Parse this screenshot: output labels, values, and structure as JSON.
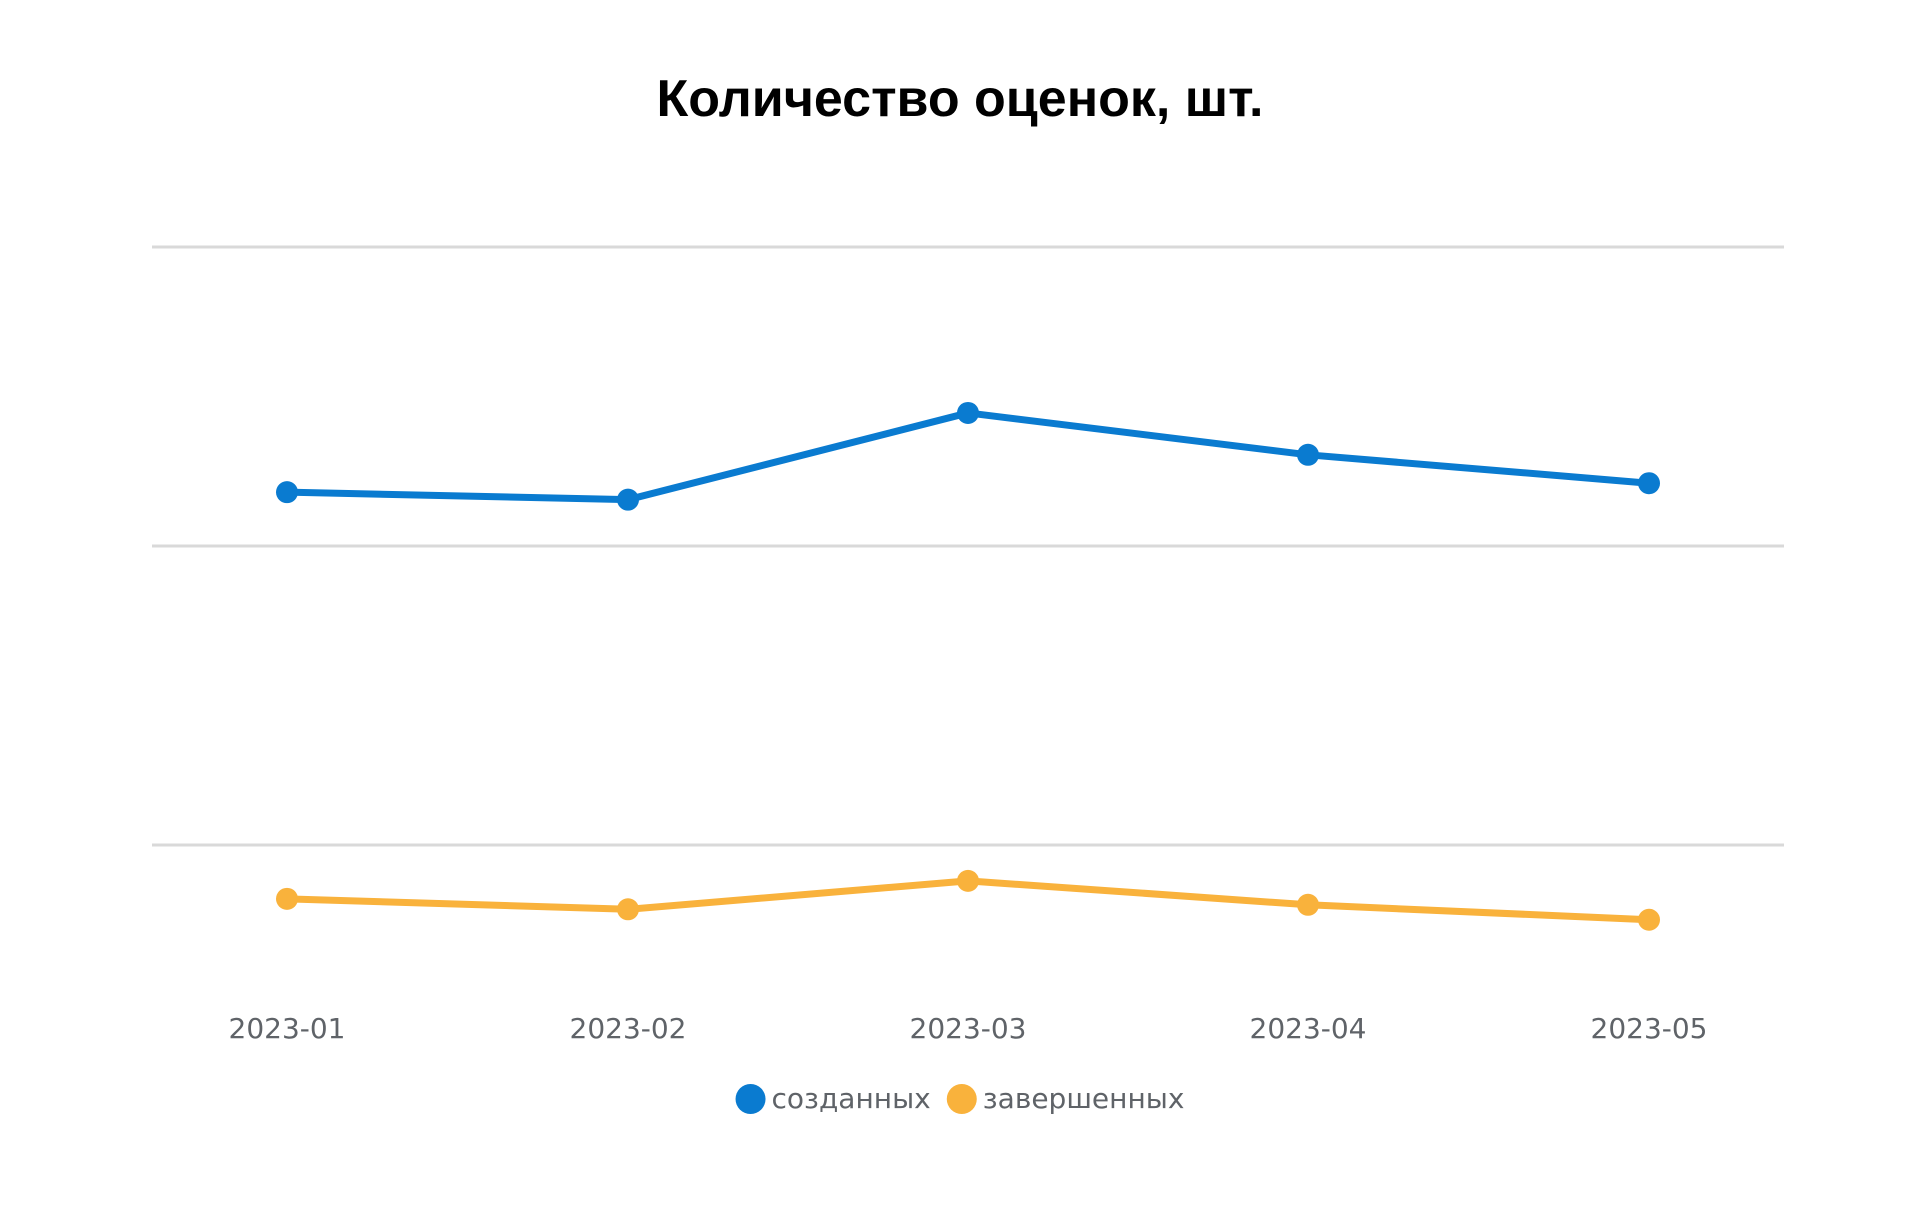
{
  "chart_data": {
    "type": "line",
    "title": "Количество оценок, шт.",
    "categories": [
      "2023-01",
      "2023-02",
      "2023-03",
      "2023-04",
      "2023-05"
    ],
    "series": [
      {
        "name": "созданных",
        "color": "#0a7bd0",
        "values": [
          1.18,
          1.155,
          1.445,
          1.305,
          1.21
        ]
      },
      {
        "name": "завершенных",
        "color": "#f9b23c",
        "values": [
          -0.18,
          -0.215,
          -0.12,
          -0.2,
          -0.25
        ]
      }
    ],
    "ylim": [
      -0.5,
      2
    ],
    "gridlines": [
      0,
      1,
      2
    ],
    "grid": true,
    "y_tick_labels_shown": false,
    "legend_position": "bottom-center"
  }
}
